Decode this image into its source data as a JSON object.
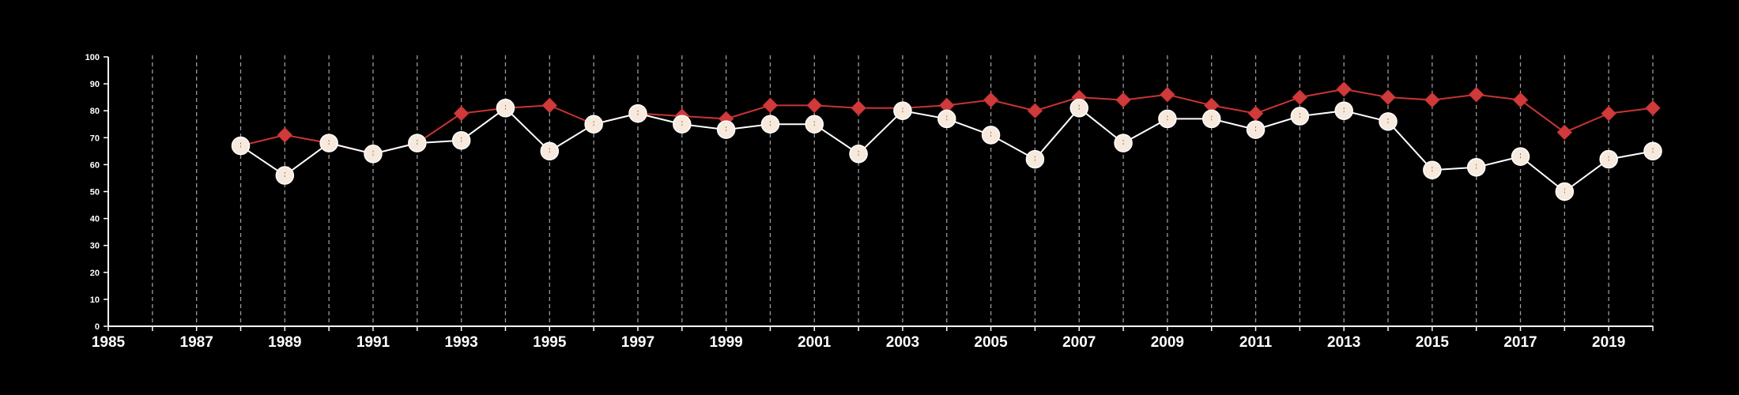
{
  "chart_data": {
    "type": "line",
    "title": "",
    "xlabel": "",
    "ylabel": "",
    "xlim": [
      1985,
      2020
    ],
    "ylim": [
      0,
      100
    ],
    "grid": {
      "vertical": true,
      "horizontal": false
    },
    "x_ticks": [
      1985,
      1987,
      1989,
      1991,
      1993,
      1995,
      1997,
      1999,
      2001,
      2003,
      2005,
      2007,
      2009,
      2011,
      2013,
      2015,
      2017,
      2019
    ],
    "y_ticks": [
      0,
      10,
      20,
      30,
      40,
      50,
      60,
      70,
      80,
      90,
      100
    ],
    "x": [
      1988,
      1989,
      1990,
      1991,
      1992,
      1993,
      1994,
      1995,
      1996,
      1997,
      1998,
      1999,
      2000,
      2001,
      2002,
      2003,
      2004,
      2005,
      2006,
      2007,
      2008,
      2009,
      2010,
      2011,
      2012,
      2013,
      2014,
      2015,
      2016,
      2017,
      2018,
      2019,
      2020
    ],
    "series": [
      {
        "marker": "diamond",
        "color": "#d03a3a",
        "line_color": "#c83434",
        "values": [
          67,
          71,
          68,
          64,
          68,
          79,
          81,
          82,
          75,
          79,
          78,
          77,
          82,
          82,
          81,
          81,
          82,
          84,
          80,
          85,
          84,
          86,
          82,
          79,
          85,
          88,
          85,
          84,
          86,
          84,
          72,
          79,
          81
        ]
      },
      {
        "marker": "circle",
        "color": "#f7e9dc",
        "line_color": "#ffffff",
        "values": [
          67,
          56,
          68,
          64,
          68,
          69,
          81,
          65,
          75,
          79,
          75,
          73,
          75,
          75,
          64,
          80,
          77,
          71,
          62,
          81,
          68,
          77,
          77,
          73,
          78,
          80,
          76,
          58,
          59,
          63,
          50,
          62,
          65
        ]
      }
    ]
  }
}
